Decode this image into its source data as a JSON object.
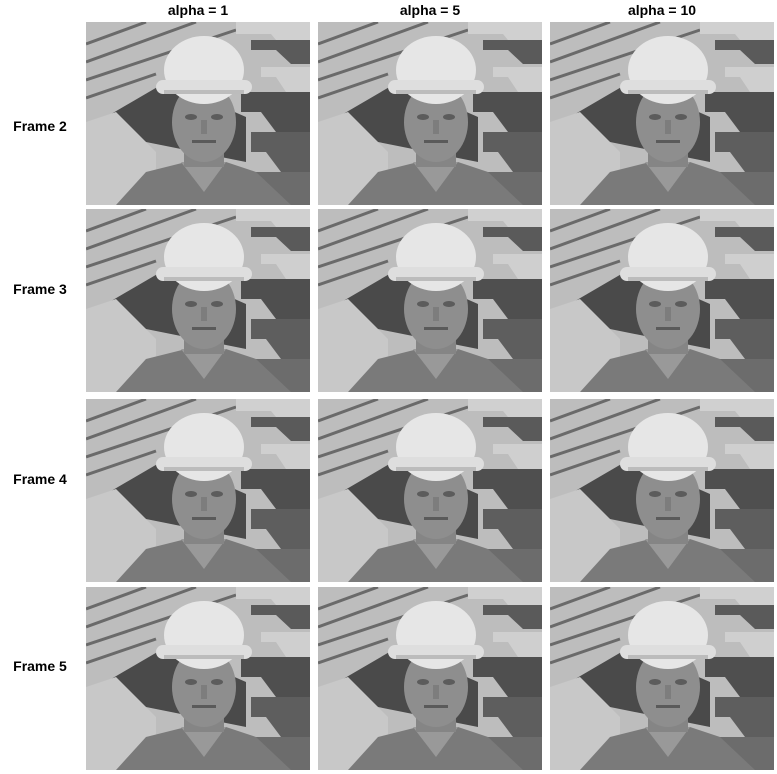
{
  "columns": [
    {
      "label": "alpha = 1"
    },
    {
      "label": "alpha = 5"
    },
    {
      "label": "alpha = 10"
    }
  ],
  "rows": [
    {
      "label": "Frame 2"
    },
    {
      "label": "Frame 3"
    },
    {
      "label": "Frame 4"
    },
    {
      "label": "Frame 5"
    }
  ],
  "image": {
    "subject": "grayscale video frame of a man wearing a white hard hat in front of a striped building facade",
    "palette": {
      "background_light": "#bdbdbd",
      "stripe_dark": "#5a5a5a",
      "stripe_light": "#d0d0d0",
      "hat": "#e6e6e6",
      "face": "#8e8e8e",
      "shirt": "#7a7a7a",
      "wall_left": "#c8c8c8",
      "shadow": "#4a4a4a"
    }
  }
}
